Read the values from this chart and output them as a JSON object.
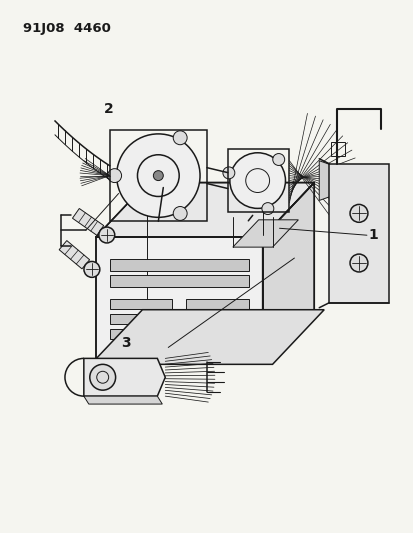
{
  "title_code": "91J08  4460",
  "bg_color": "#f5f5f0",
  "line_color": "#1a1a1a",
  "figsize": [
    4.14,
    5.33
  ],
  "dpi": 100,
  "label_1": "1",
  "label_2": "2",
  "label_3": "3"
}
